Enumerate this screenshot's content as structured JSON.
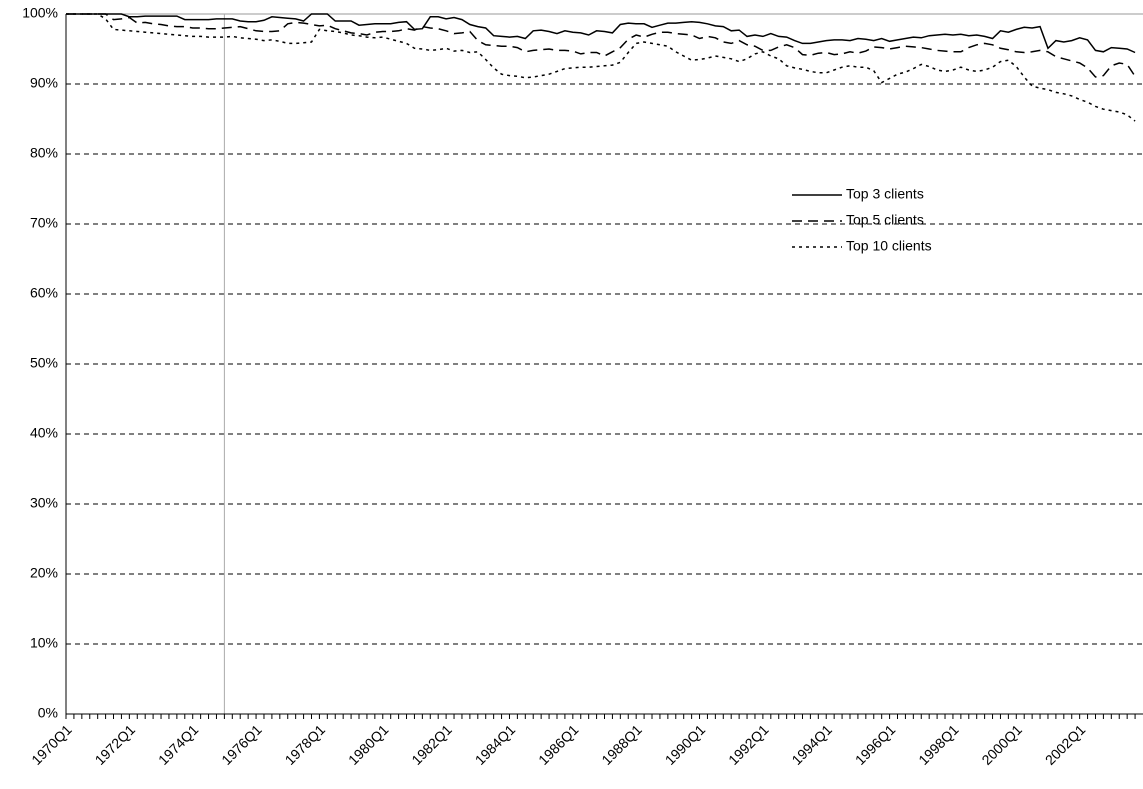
{
  "chart_data": {
    "type": "line",
    "categories": [
      "1970Q1",
      null,
      null,
      null,
      null,
      null,
      null,
      null,
      "1972Q1",
      null,
      null,
      null,
      null,
      null,
      null,
      null,
      "1974Q1",
      null,
      null,
      null,
      null,
      null,
      null,
      null,
      "1976Q1",
      null,
      null,
      null,
      null,
      null,
      null,
      null,
      "1978Q1",
      null,
      null,
      null,
      null,
      null,
      null,
      null,
      "1980Q1",
      null,
      null,
      null,
      null,
      null,
      null,
      null,
      "1982Q1",
      null,
      null,
      null,
      null,
      null,
      null,
      null,
      "1984Q1",
      null,
      null,
      null,
      null,
      null,
      null,
      null,
      "1986Q1",
      null,
      null,
      null,
      null,
      null,
      null,
      null,
      "1988Q1",
      null,
      null,
      null,
      null,
      null,
      null,
      null,
      "1990Q1",
      null,
      null,
      null,
      null,
      null,
      null,
      null,
      "1992Q1",
      null,
      null,
      null,
      null,
      null,
      null,
      null,
      "1994Q1",
      null,
      null,
      null,
      null,
      null,
      null,
      null,
      "1996Q1",
      null,
      null,
      null,
      null,
      null,
      null,
      null,
      "1998Q1",
      null,
      null,
      null,
      null,
      null,
      null,
      null,
      "2000Q1",
      null,
      null,
      null,
      null,
      null,
      null,
      null,
      "2002Q1",
      null,
      null,
      null,
      null,
      null,
      null,
      null
    ],
    "series": [
      {
        "name": "Top 3 clients",
        "color": "#000000",
        "style": "solid",
        "values": [
          100,
          100,
          100,
          100,
          100,
          100,
          100,
          100,
          99.6,
          99.6,
          99.7,
          99.7,
          99.7,
          99.7,
          99.7,
          99.2,
          99.2,
          99.2,
          99.2,
          99.3,
          99.3,
          99.3,
          99.0,
          98.9,
          98.9,
          99.1,
          99.6,
          99.5,
          99.4,
          99.3,
          99.0,
          100,
          100,
          100,
          99.0,
          99.0,
          99.0,
          98.4,
          98.5,
          98.6,
          98.6,
          98.6,
          98.8,
          98.9,
          97.8,
          97.9,
          99.6,
          99.6,
          99.3,
          99.5,
          99.2,
          98.5,
          98.2,
          98.0,
          96.9,
          96.8,
          96.7,
          96.8,
          96.5,
          97.6,
          97.7,
          97.5,
          97.2,
          97.6,
          97.4,
          97.3,
          97.0,
          97.6,
          97.5,
          97.3,
          98.5,
          98.7,
          98.6,
          98.6,
          98.1,
          98.4,
          98.7,
          98.7,
          98.8,
          98.9,
          98.8,
          98.6,
          98.3,
          98.2,
          97.6,
          97.7,
          96.8,
          97.0,
          96.8,
          97.2,
          96.8,
          96.7,
          96.2,
          95.8,
          95.8,
          96.0,
          96.2,
          96.3,
          96.3,
          96.2,
          96.5,
          96.4,
          96.2,
          96.5,
          96.1,
          96.3,
          96.5,
          96.7,
          96.6,
          96.9,
          97.0,
          97.1,
          97.0,
          97.1,
          96.9,
          97.0,
          96.8,
          96.5,
          97.6,
          97.4,
          97.8,
          98.1,
          98.0,
          98.2,
          95.1,
          96.2,
          96.0,
          96.2,
          96.6,
          96.3,
          94.8,
          94.6,
          95.2,
          95.1,
          95.0,
          94.5
        ]
      },
      {
        "name": "Top 5 clients",
        "color": "#000000",
        "style": "dashed",
        "values": [
          100,
          100,
          100,
          100,
          100,
          100,
          99.2,
          99.3,
          99.5,
          98.7,
          98.8,
          98.6,
          98.5,
          98.3,
          98.2,
          98.2,
          98.0,
          98.0,
          97.9,
          97.9,
          98.0,
          98.1,
          98.2,
          97.9,
          97.6,
          97.5,
          97.5,
          97.6,
          98.6,
          98.8,
          98.7,
          98.5,
          98.3,
          98.4,
          97.9,
          97.6,
          97.3,
          97.2,
          97.0,
          97.4,
          97.5,
          97.5,
          97.6,
          97.9,
          97.7,
          98.2,
          98.0,
          97.9,
          97.6,
          97.2,
          97.3,
          97.5,
          96.2,
          95.6,
          95.5,
          95.4,
          95.4,
          95.2,
          94.6,
          94.8,
          94.9,
          95.0,
          94.8,
          94.8,
          94.7,
          94.3,
          94.5,
          94.5,
          94.0,
          94.6,
          95.2,
          96.4,
          97.0,
          96.7,
          97.1,
          97.4,
          97.4,
          97.2,
          97.1,
          97.0,
          96.5,
          96.8,
          96.6,
          96.0,
          95.8,
          96.2,
          95.6,
          95.4,
          94.8,
          94.8,
          95.3,
          95.6,
          95.2,
          94.2,
          94.1,
          94.4,
          94.5,
          94.2,
          94.3,
          94.6,
          94.4,
          94.7,
          95.3,
          95.2,
          95.0,
          95.2,
          95.4,
          95.3,
          95.2,
          95.0,
          94.8,
          94.7,
          94.6,
          94.6,
          95.2,
          95.6,
          95.8,
          95.6,
          95.1,
          94.9,
          94.6,
          94.5,
          94.6,
          94.8,
          94.6,
          93.9,
          93.6,
          93.3,
          93.0,
          92.3,
          91.0,
          91.2,
          92.6,
          93.0,
          92.8,
          91.1
        ]
      },
      {
        "name": "Top 10 clients",
        "color": "#000000",
        "style": "dotted",
        "values": [
          100,
          100,
          100,
          100,
          100,
          99.3,
          97.8,
          97.7,
          97.6,
          97.5,
          97.4,
          97.3,
          97.2,
          97.1,
          97.0,
          96.9,
          96.8,
          96.8,
          96.7,
          96.7,
          96.7,
          96.8,
          96.6,
          96.5,
          96.4,
          96.2,
          96.3,
          96.1,
          95.8,
          95.8,
          95.9,
          96.0,
          97.8,
          97.6,
          97.5,
          97.3,
          97.0,
          96.9,
          96.7,
          96.6,
          96.7,
          96.4,
          96.1,
          95.8,
          95.1,
          95.0,
          94.8,
          94.9,
          95.1,
          94.7,
          94.8,
          94.5,
          94.6,
          93.5,
          92.3,
          91.4,
          91.2,
          91.1,
          90.9,
          91.0,
          91.2,
          91.4,
          91.8,
          92.2,
          92.3,
          92.4,
          92.4,
          92.5,
          92.6,
          92.7,
          93.1,
          94.5,
          95.8,
          96.0,
          95.8,
          95.6,
          95.4,
          94.6,
          94.0,
          93.4,
          93.5,
          93.7,
          94.0,
          93.8,
          93.6,
          93.2,
          93.6,
          94.3,
          94.6,
          94.0,
          93.6,
          92.6,
          92.3,
          92.1,
          91.8,
          91.6,
          91.6,
          92.0,
          92.4,
          92.6,
          92.4,
          92.4,
          91.9,
          90.2,
          90.8,
          91.4,
          91.7,
          92.2,
          92.8,
          92.5,
          92.0,
          91.8,
          92.0,
          92.4,
          92.0,
          91.8,
          92.0,
          92.4,
          93.2,
          93.4,
          92.5,
          91.0,
          89.7,
          89.4,
          89.2,
          88.8,
          88.6,
          88.3,
          87.8,
          87.4,
          86.8,
          86.4,
          86.2,
          86.0,
          85.6,
          84.7
        ]
      }
    ],
    "ylim": [
      0,
      100
    ],
    "yticks": [
      {
        "value": 0,
        "label": "0%"
      },
      {
        "value": 10,
        "label": "10%"
      },
      {
        "value": 20,
        "label": "20%"
      },
      {
        "value": 30,
        "label": "30%"
      },
      {
        "value": 40,
        "label": "40%"
      },
      {
        "value": 50,
        "label": "50%"
      },
      {
        "value": 60,
        "label": "60%"
      },
      {
        "value": 70,
        "label": "70%"
      },
      {
        "value": 80,
        "label": "80%"
      },
      {
        "value": 90,
        "label": "90%"
      },
      {
        "value": 100,
        "label": "100%"
      }
    ],
    "grid": true
  }
}
